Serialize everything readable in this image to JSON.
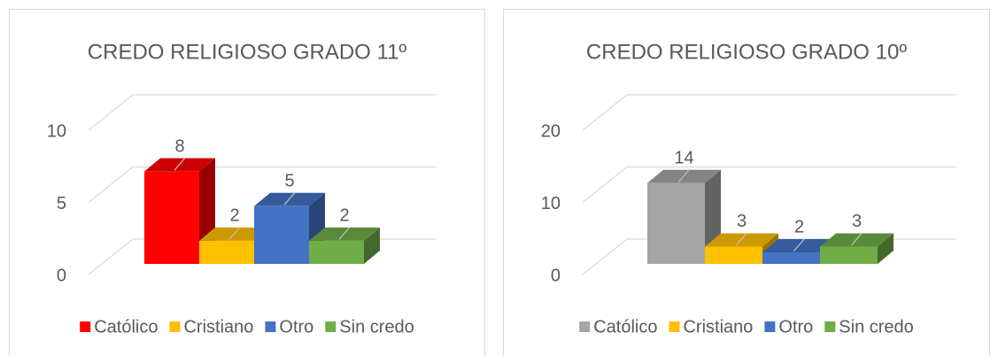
{
  "chart_data": [
    {
      "type": "bar",
      "title": "CREDO RELIGIOSO GRADO 11º",
      "ylim": [
        0,
        10
      ],
      "yticks": [
        0,
        5,
        10
      ],
      "grid": true,
      "legend": "bottom",
      "series": [
        {
          "name": "Católico",
          "color": "#ff0000",
          "values": [
            8
          ]
        },
        {
          "name": "Cristiano",
          "color": "#ffc000",
          "values": [
            2
          ]
        },
        {
          "name": "Otro",
          "color": "#4472c4",
          "values": [
            5
          ]
        },
        {
          "name": "Sin credo",
          "color": "#70ad47",
          "values": [
            2
          ]
        }
      ]
    },
    {
      "type": "bar",
      "title": "CREDO RELIGIOSO GRADO 10º",
      "ylim": [
        0,
        20
      ],
      "yticks": [
        0,
        10,
        20
      ],
      "grid": true,
      "legend": "bottom",
      "series": [
        {
          "name": "Católico",
          "color": "#a5a5a5",
          "values": [
            14
          ]
        },
        {
          "name": "Cristiano",
          "color": "#ffc000",
          "values": [
            3
          ]
        },
        {
          "name": "Otro",
          "color": "#4472c4",
          "values": [
            2
          ]
        },
        {
          "name": "Sin credo",
          "color": "#70ad47",
          "values": [
            3
          ]
        }
      ]
    }
  ]
}
